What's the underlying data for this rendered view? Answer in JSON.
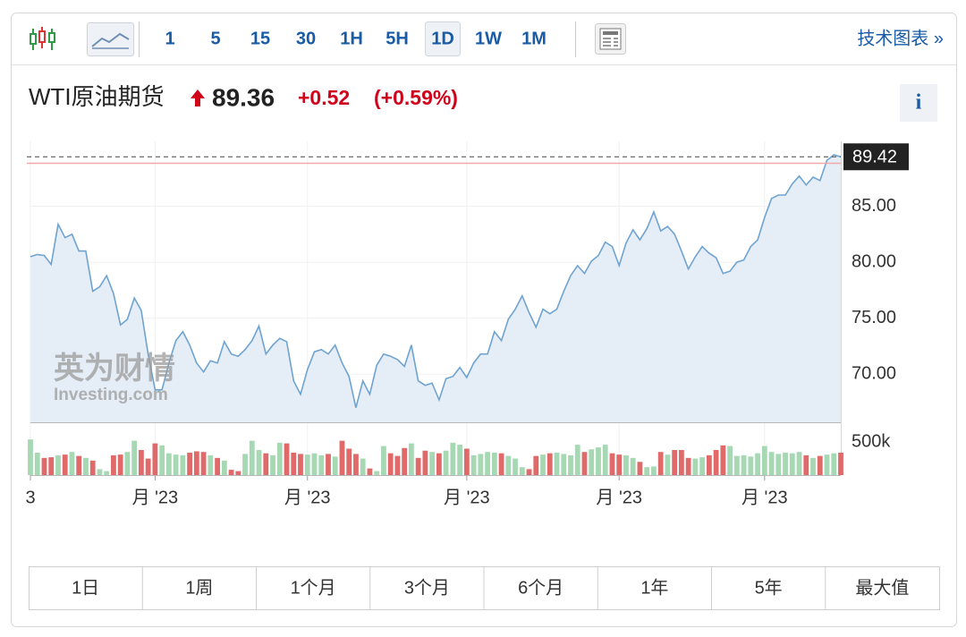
{
  "toolbar": {
    "intervals": [
      "1",
      "5",
      "15",
      "30",
      "1H",
      "5H",
      "1D",
      "1W",
      "1M"
    ],
    "active": "1D",
    "link": "技术图表 »"
  },
  "header": {
    "name": "WTI原油期货",
    "price": "89.36",
    "change": "+0.52",
    "change_percent": "(+0.59%)",
    "info": "i"
  },
  "watermark": {
    "brand": "英为财情",
    "site": "Investing.com"
  },
  "chart_data": {
    "type": "line",
    "categories": [
      "3",
      null,
      null,
      null,
      null,
      null,
      null,
      null,
      null,
      null,
      null,
      null,
      null,
      null,
      null,
      null,
      null,
      null,
      "月 '23",
      null,
      null,
      null,
      null,
      null,
      null,
      null,
      null,
      null,
      null,
      null,
      null,
      null,
      null,
      null,
      null,
      null,
      null,
      null,
      null,
      null,
      "月 '23",
      null,
      null,
      null,
      null,
      null,
      null,
      null,
      null,
      null,
      null,
      null,
      null,
      null,
      null,
      null,
      null,
      null,
      null,
      null,
      null,
      null,
      null,
      "月 '23",
      null,
      null,
      null,
      null,
      null,
      null,
      null,
      null,
      null,
      null,
      null,
      null,
      null,
      null,
      null,
      null,
      null,
      null,
      null,
      null,
      null,
      "月 '23",
      null,
      null,
      null,
      null,
      null,
      null,
      null,
      null,
      null,
      null,
      null,
      null,
      null,
      null,
      null,
      null,
      null,
      null,
      null,
      null,
      "月 '23",
      null,
      null,
      null,
      null,
      null,
      null,
      null,
      null,
      null,
      null,
      null
    ],
    "series": [
      {
        "color": "#6fa3d0",
        "fill": "#e5edf6",
        "values": [
          80.5,
          80.7,
          80.6,
          79.8,
          83.4,
          82.2,
          82.5,
          81.0,
          81.0,
          77.4,
          77.8,
          78.8,
          77.2,
          74.4,
          74.9,
          76.8,
          75.7,
          71.8,
          68.6,
          68.6,
          71.0,
          73.0,
          73.8,
          72.6,
          71.0,
          70.2,
          71.2,
          71.0,
          72.9,
          71.8,
          71.6,
          72.2,
          73.0,
          74.3,
          71.8,
          72.6,
          73.2,
          72.9,
          69.4,
          68.2,
          70.4,
          72.0,
          72.2,
          71.8,
          72.6,
          71.0,
          69.8,
          67.0,
          69.4,
          68.2,
          70.8,
          71.8,
          71.6,
          71.3,
          70.7,
          72.6,
          69.4,
          69.0,
          69.2,
          67.7,
          69.6,
          69.8,
          70.6,
          69.7,
          71.0,
          71.8,
          71.8,
          73.8,
          73.0,
          74.9,
          75.8,
          77.0,
          75.5,
          74.2,
          75.8,
          75.4,
          75.8,
          77.4,
          78.8,
          79.7,
          79.0,
          80.1,
          80.6,
          81.8,
          81.4,
          79.7,
          81.7,
          82.9,
          82.0,
          83.0,
          84.5,
          82.8,
          83.2,
          82.5,
          81.0,
          79.4,
          80.5,
          81.4,
          80.8,
          80.4,
          79.0,
          79.2,
          80.0,
          80.2,
          81.4,
          82.0,
          84.0,
          85.7,
          86.0,
          86.0,
          87.0,
          87.7,
          86.9,
          87.6,
          87.3,
          89.1,
          89.6,
          89.42
        ]
      }
    ],
    "ylim": [
      65.7,
      90.8
    ],
    "yticks": [
      {
        "value": 70,
        "label": "70.00"
      },
      {
        "value": 75,
        "label": "75.00"
      },
      {
        "value": 80,
        "label": "80.00"
      },
      {
        "value": 85,
        "label": "85.00"
      }
    ],
    "last_price": {
      "value": 89.42,
      "label": "89.42"
    },
    "prev_close": 88.84,
    "volume": {
      "values": [
        540000,
        340000,
        260000,
        270000,
        300000,
        310000,
        350000,
        290000,
        260000,
        220000,
        90000,
        60000,
        300000,
        310000,
        350000,
        520000,
        380000,
        250000,
        480000,
        450000,
        330000,
        310000,
        300000,
        340000,
        360000,
        350000,
        300000,
        260000,
        220000,
        80000,
        60000,
        320000,
        520000,
        380000,
        330000,
        300000,
        490000,
        480000,
        340000,
        320000,
        310000,
        330000,
        300000,
        320000,
        280000,
        520000,
        400000,
        320000,
        250000,
        100000,
        60000,
        440000,
        330000,
        290000,
        410000,
        480000,
        260000,
        370000,
        350000,
        330000,
        370000,
        490000,
        460000,
        400000,
        300000,
        320000,
        350000,
        340000,
        330000,
        290000,
        250000,
        120000,
        90000,
        290000,
        310000,
        330000,
        340000,
        320000,
        300000,
        460000,
        350000,
        390000,
        420000,
        460000,
        330000,
        310000,
        300000,
        260000,
        200000,
        120000,
        130000,
        350000,
        310000,
        380000,
        380000,
        260000,
        250000,
        270000,
        300000,
        380000,
        450000,
        440000,
        290000,
        300000,
        280000,
        330000,
        440000,
        350000,
        320000,
        340000,
        330000,
        350000,
        300000,
        260000,
        290000,
        310000,
        330000,
        340000
      ],
      "ylim": [
        0,
        800000
      ],
      "yticks": [
        {
          "value": 500000,
          "label": "500k"
        }
      ],
      "up_color": "#a6d9b3",
      "down_color": "#e06a6a"
    }
  },
  "ranges": [
    "1日",
    "1周",
    "1个月",
    "3个月",
    "6个月",
    "1年",
    "5年",
    "最大值"
  ]
}
